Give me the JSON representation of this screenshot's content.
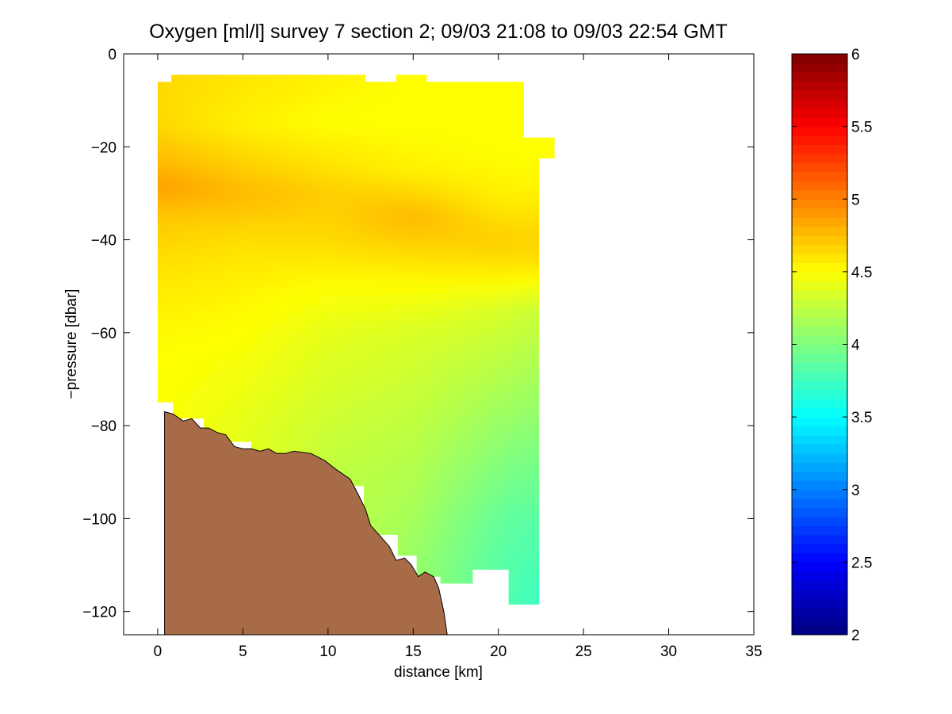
{
  "chart_data": {
    "type": "heatmap",
    "title": "Oxygen [ml/l] survey 7 section 2; 09/03 21:08 to 09/03 22:54 GMT",
    "xlabel": "distance [km]",
    "ylabel": "−pressure [dbar]",
    "xlim": [
      -2,
      35
    ],
    "ylim": [
      -125,
      0
    ],
    "xticks": [
      0,
      5,
      10,
      15,
      20,
      25,
      30,
      35
    ],
    "xtick_labels": [
      "0",
      "5",
      "10",
      "15",
      "20",
      "25",
      "30",
      "35"
    ],
    "yticks": [
      0,
      -20,
      -40,
      -60,
      -80,
      -100,
      -120
    ],
    "ytick_labels": [
      "0",
      "−20",
      "−40",
      "−60",
      "−80",
      "−100",
      "−120"
    ],
    "colorbar": {
      "colormap": "jet",
      "range": [
        2,
        6
      ],
      "ticks": [
        2,
        2.5,
        3,
        3.5,
        4,
        4.5,
        5,
        5.5,
        6
      ],
      "tick_labels": [
        "2",
        "2.5",
        "3",
        "3.5",
        "4",
        "4.5",
        "5",
        "5.5",
        "6"
      ]
    },
    "grid": false,
    "data_extent": {
      "x_range_km": [
        0,
        23.3
      ],
      "top_edge": [
        [
          0,
          -6
        ],
        [
          0.8,
          -6
        ],
        [
          0.8,
          -4.5
        ],
        [
          12.2,
          -4.5
        ],
        [
          12.2,
          -6
        ],
        [
          14,
          -6
        ],
        [
          14,
          -4.5
        ],
        [
          15.8,
          -4.5
        ],
        [
          15.8,
          -6
        ],
        [
          21.5,
          -6
        ],
        [
          21.5,
          -18
        ],
        [
          23.3,
          -18
        ],
        [
          23.3,
          -22.5
        ],
        [
          22.4,
          -22.5
        ],
        [
          22.4,
          -118.5
        ]
      ],
      "bottom_edge": [
        [
          22.4,
          -118.5
        ],
        [
          20.6,
          -118.5
        ],
        [
          20.6,
          -111
        ],
        [
          18.5,
          -111
        ],
        [
          18.5,
          -114
        ],
        [
          16.6,
          -114
        ],
        [
          16.6,
          -112.5
        ],
        [
          15.2,
          -112.5
        ],
        [
          15.2,
          -108
        ],
        [
          14.1,
          -108
        ],
        [
          14.1,
          -103.5
        ],
        [
          12.1,
          -103.5
        ],
        [
          12.1,
          -93
        ],
        [
          11.0,
          -93
        ],
        [
          11.0,
          -91
        ],
        [
          9.3,
          -91
        ],
        [
          9.3,
          -87.5
        ],
        [
          5.5,
          -87.5
        ],
        [
          5.5,
          -83.5
        ],
        [
          2.7,
          -83.5
        ],
        [
          2.7,
          -78.5
        ],
        [
          0.9,
          -78.5
        ],
        [
          0.9,
          -75
        ],
        [
          0,
          -75
        ]
      ]
    },
    "oxygen_estimates_ml_per_l": [
      {
        "x_km": 0,
        "y": [
          -6,
          -15,
          -25,
          -28,
          -35,
          -45,
          -55,
          -65,
          -75
        ],
        "value": [
          4.65,
          4.65,
          4.8,
          4.9,
          4.72,
          4.62,
          4.55,
          4.5,
          4.5
        ]
      },
      {
        "x_km": 5,
        "y": [
          -5,
          -15,
          -25,
          -30,
          -40,
          -50,
          -60,
          -70,
          -80
        ],
        "value": [
          4.6,
          4.55,
          4.7,
          4.78,
          4.63,
          4.55,
          4.5,
          4.45,
          4.4
        ]
      },
      {
        "x_km": 10,
        "y": [
          -5,
          -15,
          -25,
          -30,
          -40,
          -50,
          -60,
          -70,
          -80,
          -90
        ],
        "value": [
          4.55,
          4.5,
          4.62,
          4.7,
          4.65,
          4.5,
          4.4,
          4.35,
          4.3,
          4.25
        ]
      },
      {
        "x_km": 15,
        "y": [
          -5,
          -15,
          -25,
          -35,
          -40,
          -50,
          -60,
          -70,
          -80,
          -90,
          -100,
          -110
        ],
        "value": [
          4.5,
          4.5,
          4.55,
          4.78,
          4.7,
          4.5,
          4.35,
          4.3,
          4.25,
          4.2,
          4.15,
          4.1
        ]
      },
      {
        "x_km": 20,
        "y": [
          -6,
          -20,
          -30,
          -40,
          -45,
          -55,
          -70,
          -80,
          -90,
          -100,
          -110
        ],
        "value": [
          4.5,
          4.5,
          4.55,
          4.7,
          4.62,
          4.35,
          4.2,
          4.1,
          4.0,
          3.9,
          3.85
        ]
      },
      {
        "x_km": 22,
        "y": [
          -22,
          -30,
          -40,
          -45,
          -55,
          -70,
          -80,
          -90,
          -100,
          -110,
          -118
        ],
        "value": [
          4.5,
          4.55,
          4.68,
          4.62,
          4.3,
          4.15,
          4.05,
          3.95,
          3.85,
          3.8,
          3.75
        ]
      }
    ],
    "seafloor": {
      "color": "#a86b48",
      "profile": [
        [
          0.4,
          -77
        ],
        [
          0.9,
          -77.5
        ],
        [
          1.5,
          -79
        ],
        [
          2.0,
          -78.5
        ],
        [
          2.5,
          -80.5
        ],
        [
          3.0,
          -80.5
        ],
        [
          3.5,
          -81.5
        ],
        [
          4.0,
          -82
        ],
        [
          4.5,
          -84.5
        ],
        [
          5.0,
          -85
        ],
        [
          5.5,
          -85
        ],
        [
          6.0,
          -85.5
        ],
        [
          6.5,
          -85
        ],
        [
          7.0,
          -86
        ],
        [
          7.5,
          -86
        ],
        [
          8.0,
          -85.5
        ],
        [
          9.0,
          -86
        ],
        [
          9.8,
          -87.5
        ],
        [
          10.5,
          -89.5
        ],
        [
          11.3,
          -91.5
        ],
        [
          11.8,
          -95
        ],
        [
          12.2,
          -98
        ],
        [
          12.5,
          -101.5
        ],
        [
          13.0,
          -103.5
        ],
        [
          13.6,
          -106
        ],
        [
          14.0,
          -109
        ],
        [
          14.5,
          -108.5
        ],
        [
          14.9,
          -110
        ],
        [
          15.3,
          -112.5
        ],
        [
          15.7,
          -111.5
        ],
        [
          16.2,
          -112.5
        ],
        [
          16.5,
          -115
        ],
        [
          16.8,
          -120
        ],
        [
          17.0,
          -125
        ]
      ]
    }
  }
}
